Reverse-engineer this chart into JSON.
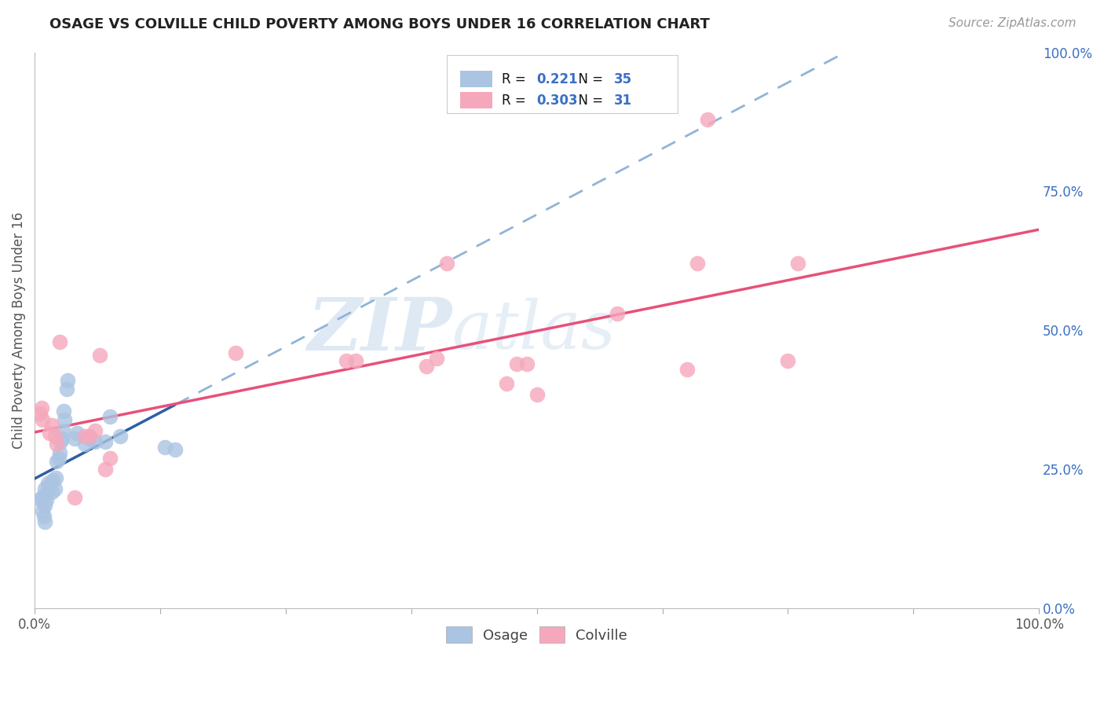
{
  "title": "OSAGE VS COLVILLE CHILD POVERTY AMONG BOYS UNDER 16 CORRELATION CHART",
  "source": "Source: ZipAtlas.com",
  "ylabel": "Child Poverty Among Boys Under 16",
  "xlim": [
    0,
    1
  ],
  "ylim": [
    0,
    1
  ],
  "ytick_labels": [
    "0.0%",
    "25.0%",
    "50.0%",
    "75.0%",
    "100.0%"
  ],
  "ytick_values": [
    0.0,
    0.25,
    0.5,
    0.75,
    1.0
  ],
  "osage_color": "#aac4e2",
  "colville_color": "#f5a8bc",
  "osage_line_color": "#2e5fa3",
  "colville_line_color": "#e8507a",
  "osage_r": 0.221,
  "osage_n": 35,
  "colville_r": 0.303,
  "colville_n": 31,
  "watermark": "ZIPatlas",
  "osage_x": [
    0.005,
    0.007,
    0.008,
    0.009,
    0.01,
    0.01,
    0.01,
    0.011,
    0.012,
    0.013,
    0.015,
    0.017,
    0.018,
    0.02,
    0.021,
    0.022,
    0.024,
    0.025,
    0.026,
    0.027,
    0.028,
    0.029,
    0.03,
    0.032,
    0.033,
    0.04,
    0.042,
    0.05,
    0.055,
    0.06,
    0.07,
    0.075,
    0.085,
    0.13,
    0.14
  ],
  "osage_y": [
    0.195,
    0.2,
    0.175,
    0.165,
    0.155,
    0.185,
    0.215,
    0.205,
    0.195,
    0.225,
    0.22,
    0.21,
    0.23,
    0.215,
    0.235,
    0.265,
    0.27,
    0.28,
    0.3,
    0.305,
    0.32,
    0.355,
    0.34,
    0.395,
    0.41,
    0.305,
    0.315,
    0.295,
    0.305,
    0.3,
    0.3,
    0.345,
    0.31,
    0.29,
    0.285
  ],
  "colville_x": [
    0.005,
    0.007,
    0.008,
    0.015,
    0.017,
    0.02,
    0.022,
    0.025,
    0.04,
    0.05,
    0.055,
    0.06,
    0.065,
    0.07,
    0.075,
    0.2,
    0.31,
    0.32,
    0.39,
    0.4,
    0.41,
    0.47,
    0.48,
    0.49,
    0.5,
    0.58,
    0.65,
    0.66,
    0.67,
    0.75,
    0.76
  ],
  "colville_y": [
    0.35,
    0.36,
    0.34,
    0.315,
    0.33,
    0.31,
    0.295,
    0.48,
    0.2,
    0.31,
    0.31,
    0.32,
    0.455,
    0.25,
    0.27,
    0.46,
    0.445,
    0.445,
    0.435,
    0.45,
    0.62,
    0.405,
    0.44,
    0.44,
    0.385,
    0.53,
    0.43,
    0.62,
    0.88,
    0.445,
    0.62
  ],
  "background_color": "#ffffff",
  "grid_color": "#d8d8d8",
  "right_ytick_color": "#3a6fc4",
  "title_color": "#222222",
  "source_color": "#999999",
  "ylabel_color": "#555555",
  "xtick_color": "#555555"
}
